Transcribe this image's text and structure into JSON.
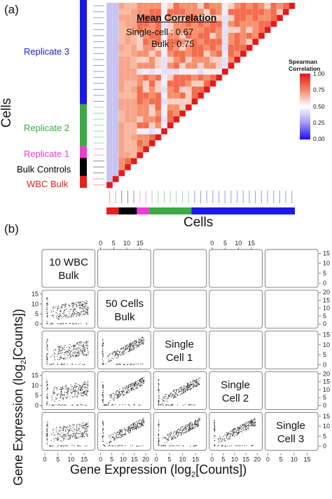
{
  "panel_a": {
    "label": "(a)",
    "title": "Mean Correlation",
    "single_cell": "Single-cell : 0.67",
    "bulk": "Bulk : 0.75",
    "x_axis_label": "Cells",
    "y_axis_label": "Cells",
    "legend": {
      "title_line1": "Spearman",
      "title_line2": "Correlation",
      "ticks": [
        "1.00",
        "0.75",
        "0.50",
        "0.25",
        "0.00"
      ]
    },
    "groups": [
      {
        "name": "WBC Bulk",
        "color": "#e8201c",
        "count": 2
      },
      {
        "name": "Bulk Controls",
        "color": "#000000",
        "count": 3
      },
      {
        "name": "Replicate 1",
        "color": "#ee3bd6",
        "count": 2
      },
      {
        "name": "Replicate 2",
        "color": "#3caa45",
        "count": 7
      },
      {
        "name": "Replicate 3",
        "color": "#1a1ae6",
        "count": 17
      }
    ],
    "colors": {
      "diag": "#e31a1c",
      "high": "#f46d4f",
      "mid": "#fbd0c2",
      "white": "#ffffff",
      "low_blue": "#c8c4f2"
    }
  },
  "panel_b": {
    "label": "(b)",
    "x_axis_label": "Gene Expression (log",
    "x_axis_sub": "2",
    "x_axis_end": "[Counts])",
    "y_axis_label": "Gene Expression (log",
    "y_axis_sub": "2",
    "y_axis_end": "[Counts])",
    "diag_labels": [
      [
        "10 WBC",
        "Bulk"
      ],
      [
        "50 Cells",
        "Bulk"
      ],
      [
        "Single",
        "Cell 1"
      ],
      [
        "Single",
        "Cell 2"
      ],
      [
        "Single",
        "Cell 3"
      ]
    ],
    "top_ticks": [
      "0",
      "5",
      "10",
      "15"
    ],
    "bottom_ticks_a": [
      "0",
      "5",
      "10",
      "15"
    ],
    "bottom_ticks_b": [
      "0",
      "5",
      "10",
      "15",
      "20"
    ],
    "right_ticks_a": [
      "15",
      "10",
      "5",
      "0"
    ],
    "right_ticks_b": [
      "20",
      "15",
      "10",
      "5",
      "0"
    ]
  }
}
